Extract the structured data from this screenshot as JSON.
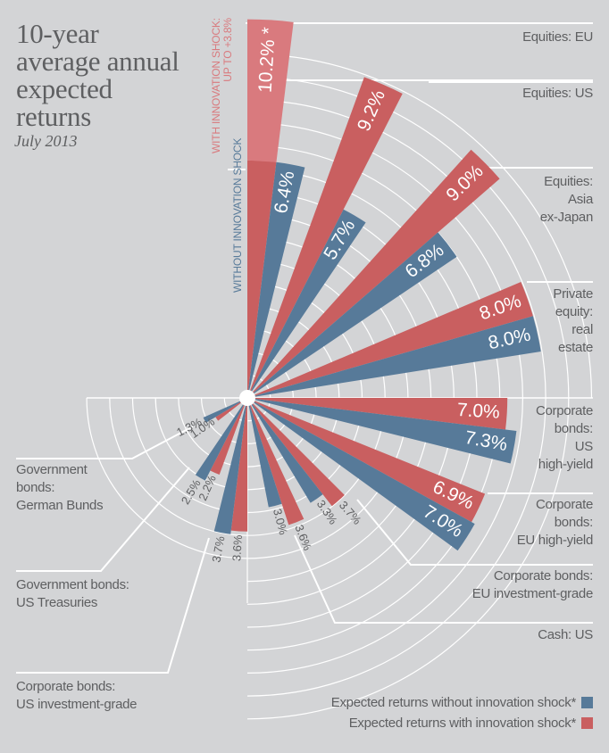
{
  "title_lines": [
    "10-year",
    "average annual",
    "expected",
    "returns"
  ],
  "subtitle": "July 2013",
  "colors": {
    "background": "#d3d4d6",
    "without_shock": "#577a99",
    "with_shock": "#c95f60",
    "shock_increment": "#d97a7e",
    "grid": "#ffffff",
    "text": "#5e5f61"
  },
  "annotations": {
    "with_shock_line1": "WITH INNOVATION SHOCK:",
    "with_shock_line2": "UP TO +3.8%",
    "without_shock": "WITHOUT INNOVATION SHOCK"
  },
  "legend": [
    {
      "label": "Expected returns without innovation shock*",
      "series": "without_shock"
    },
    {
      "label": "Expected returns with innovation shock*",
      "series": "with_shock"
    }
  ],
  "chart_data": {
    "type": "bar",
    "subtype": "radial",
    "title": "10-year average annual expected returns",
    "subtitle": "July 2013",
    "unit": "%",
    "categories": [
      "Equities: EU",
      "Equities: US",
      "Equities: Asia ex-Japan",
      "Private equity: real estate",
      "Corporate bonds: US high-yield",
      "Corporate bonds: EU high-yield",
      "Corporate bonds: EU investment-grade",
      "Cash: US",
      "Corporate bonds: US investment-grade",
      "Government bonds: US Treasuries",
      "Government bonds: German Bunds"
    ],
    "category_label_lines": [
      [
        "Equities: EU"
      ],
      [
        "Equities: US"
      ],
      [
        "Equities:",
        "Asia",
        "ex-Japan"
      ],
      [
        "Private",
        "equity:",
        "real",
        "estate"
      ],
      [
        "Corporate",
        "bonds:",
        "US",
        "high-yield"
      ],
      [
        "Corporate",
        "bonds:",
        "EU high-yield"
      ],
      [
        "Corporate bonds:",
        "EU investment-grade"
      ],
      [
        "Cash: US"
      ],
      [
        "Corporate bonds:",
        "US investment-grade"
      ],
      [
        "Government bonds:",
        "US Treasuries"
      ],
      [
        "Government",
        "bonds:",
        "German Bunds"
      ]
    ],
    "series": [
      {
        "name": "Expected returns with innovation shock",
        "key": "with_shock",
        "values": [
          10.2,
          9.2,
          9.0,
          8.0,
          7.0,
          6.9,
          3.7,
          3.6,
          3.6,
          2.2,
          1.0
        ],
        "labels": [
          "10.2% *",
          "9.2%",
          "9.0%",
          "8.0%",
          "7.0%",
          "6.9%",
          "3.7%",
          "3.6%",
          "3.6%",
          "2.2%",
          "1.0%"
        ]
      },
      {
        "name": "Expected returns without innovation shock",
        "key": "without_shock",
        "values": [
          6.4,
          5.7,
          6.8,
          8.0,
          7.3,
          7.0,
          3.3,
          3.0,
          3.7,
          2.5,
          1.3
        ],
        "labels": [
          "6.4%",
          "5.7%",
          "6.8%",
          "8.0%",
          "7.3%",
          "7.0%",
          "3.3%",
          "3.0%",
          "3.7%",
          "2.5%",
          "1.3%"
        ]
      }
    ],
    "shock_note": "Equities: EU with innovation shock up to +3.8%",
    "legend_position": "bottom-right",
    "grid": true
  }
}
